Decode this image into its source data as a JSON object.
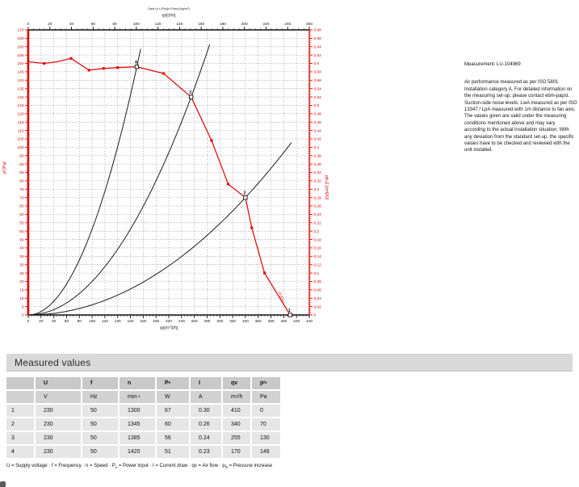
{
  "chart": {
    "tiny_title": "Dash p f (Pa)(x Flow),(kg/m³)",
    "colors": {
      "axis_red": "#dd0000",
      "curve_red": "#e01212",
      "axis_black": "#111111",
      "grid": "#9a9a9a"
    }
  },
  "chart_data": {
    "type": "line",
    "title": "Dash p f (Pa)(x Flow),(kg/m³)",
    "axes": {
      "top": {
        "label": "qv[cfm]",
        "min": 0,
        "max": 260,
        "major": 20,
        "minor": 5
      },
      "bottom": {
        "label": "qv[m^3/h]",
        "min": 0,
        "max": 440,
        "major": 20,
        "minor": 5
      },
      "left": {
        "label": "pf [Pa]",
        "min": 0,
        "max": 170,
        "major": 5,
        "minor": 1
      },
      "right": {
        "label": "pfs,E [inH2O]",
        "min": 0,
        "max": 0.68,
        "major": 0.02,
        "minor": 0.005
      }
    },
    "grid": {
      "x_step": 20,
      "y_step": 5,
      "style": "dashed"
    },
    "fan_curve": {
      "name": "fan pressure curve pf vs qv",
      "points": [
        [
          0,
          151
        ],
        [
          25,
          150
        ],
        [
          45,
          151
        ],
        [
          67,
          153
        ],
        [
          95,
          146
        ],
        [
          118,
          147
        ],
        [
          140,
          147.5
        ],
        [
          170,
          148
        ],
        [
          212,
          144
        ],
        [
          255,
          130
        ],
        [
          287,
          104
        ],
        [
          313,
          78
        ],
        [
          340,
          70
        ],
        [
          350,
          52
        ],
        [
          370,
          25
        ],
        [
          410,
          0
        ]
      ],
      "markers": [
        [
          25,
          150
        ],
        [
          67,
          153
        ],
        [
          95,
          146
        ],
        [
          118,
          147
        ],
        [
          140,
          147.5
        ],
        [
          212,
          144
        ],
        [
          287,
          104
        ],
        [
          313,
          78
        ],
        [
          350,
          52
        ],
        [
          370,
          25
        ]
      ],
      "tail_label": "pf (Pa)"
    },
    "system_curves": [
      {
        "name": "system curve through point 4",
        "through": [
          170,
          148
        ],
        "qv_end": 178
      },
      {
        "name": "system curve through point 3",
        "through": [
          255,
          130
        ],
        "qv_end": 285
      },
      {
        "name": "system curve through point 2",
        "through": [
          340,
          70
        ],
        "qv_end": 414
      }
    ],
    "measured_points": [
      {
        "label": "1",
        "qv": 410,
        "pf": 0
      },
      {
        "label": "2",
        "qv": 340,
        "pf": 70
      },
      {
        "label": "3",
        "qv": 255,
        "pf": 130
      },
      {
        "label": "4",
        "qv": 170,
        "pf": 148
      }
    ]
  },
  "side_text": {
    "measurement": "Measurement: LU-104969",
    "body": "Air performance measured as per ISO 5801 Installation category A. For detailed information on the measuring set-up, please contact ebm-papst. Suction-side noise levels: LwA measured as per ISO 13347 / LpA measured with 1m distance to fan axis. The values given are valid under the measuring conditions mentioned above and may vary according to the actual installation situation. With any deviation from the standard set-up, the specific values have to be checked and reviewed with the unit installed."
  },
  "measured_values": {
    "section_title": "Measured values",
    "columns": [
      [],
      [
        {
          "t": "U"
        }
      ],
      [
        {
          "t": "f"
        }
      ],
      [
        {
          "t": "n"
        }
      ],
      [
        {
          "t": "P"
        },
        {
          "sub": "e"
        }
      ],
      [
        {
          "t": "I"
        }
      ],
      [
        {
          "t": "qv"
        }
      ],
      [
        {
          "t": "p"
        },
        {
          "sub": "fs"
        }
      ]
    ],
    "units": [
      [],
      [
        {
          "t": "V"
        }
      ],
      [
        {
          "t": "Hz"
        }
      ],
      [
        {
          "t": "min"
        },
        {
          "sup": "-1"
        }
      ],
      [
        {
          "t": "W"
        }
      ],
      [
        {
          "t": "A"
        }
      ],
      [
        {
          "t": "m"
        },
        {
          "sup": "3"
        },
        {
          "t": "/h"
        }
      ],
      [
        {
          "t": "Pa"
        }
      ]
    ],
    "rows": [
      [
        "1",
        "230",
        "50",
        "1300",
        "67",
        "0.30",
        "410",
        "0"
      ],
      [
        "2",
        "230",
        "50",
        "1345",
        "60",
        "0.26",
        "340",
        "70"
      ],
      [
        "3",
        "230",
        "50",
        "1385",
        "56",
        "0.24",
        "255",
        "130"
      ],
      [
        "4",
        "230",
        "50",
        "1420",
        "51",
        "0.23",
        "170",
        "148"
      ]
    ],
    "footnote": [
      {
        "t": "U = Supply voltage · f = Frequency · n = Speed · P"
      },
      {
        "sub": "e"
      },
      {
        "t": " = Power input · I = Current draw · qv = Air flow · p"
      },
      {
        "sub": "fs"
      },
      {
        "t": " = Pressure increase"
      }
    ]
  }
}
